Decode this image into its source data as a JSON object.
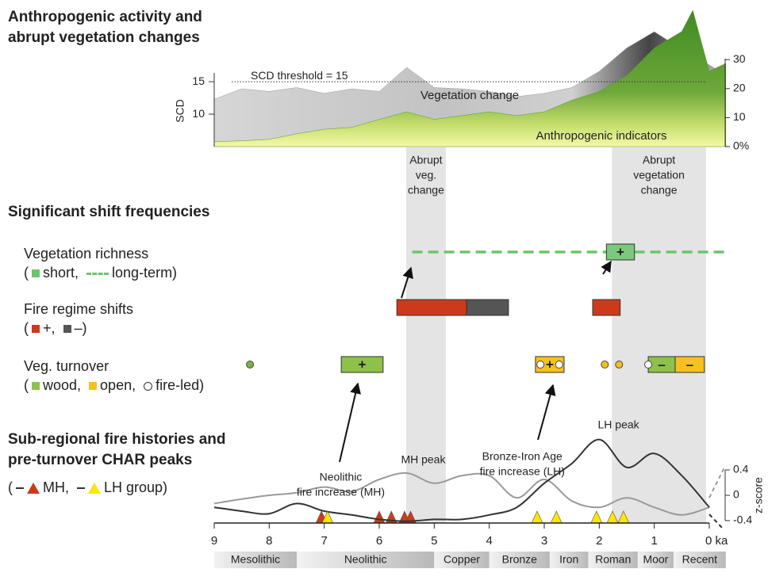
{
  "chart_data": [
    {
      "type": "area",
      "title": [
        "Anthropogenic activity and",
        "abrupt vegetation changes"
      ],
      "ylabel": "SCD",
      "xlim": [
        9,
        -0.3
      ],
      "ylim": [
        5,
        26
      ],
      "yticks": [
        10,
        15
      ],
      "y2lim": [
        0,
        47
      ],
      "y2ticks": [
        {
          "value": 0,
          "label": "0%"
        },
        10,
        20,
        30
      ],
      "threshold": {
        "value": 15,
        "label": "SCD threshold = 15"
      },
      "x": [
        9,
        8.5,
        8,
        7.5,
        7,
        6.5,
        6,
        5.5,
        5,
        4.5,
        4,
        3.5,
        3,
        2.5,
        2,
        1.5,
        1,
        0.5,
        0.3,
        0,
        -0.3
      ],
      "series": [
        {
          "name": "Vegetation change",
          "color": "#9a9a9a",
          "values": [
            12.3,
            13.9,
            13.5,
            14.1,
            13.2,
            13.9,
            13.5,
            17.2,
            14.1,
            13.9,
            13.5,
            12.7,
            13.2,
            14.1,
            16.6,
            20.2,
            22.7,
            20,
            19,
            17.6,
            16
          ]
        },
        {
          "name": "Anthropogenic indicators",
          "color": "#5a9a2e",
          "axis": "y2",
          "values": [
            1.7,
            2,
            2.5,
            4.4,
            6,
            6.6,
            9.4,
            12,
            9.4,
            10.7,
            12,
            10.7,
            12,
            16,
            19,
            24.5,
            34,
            39.7,
            47,
            26,
            28.7
          ]
        }
      ],
      "bands": [
        {
          "start": 5.51,
          "end": 4.79,
          "label": [
            "Abrupt",
            "veg.",
            "change"
          ]
        },
        {
          "start": 1.77,
          "end": 0.06,
          "label": [
            "Abrupt",
            "vegetation",
            "change"
          ]
        }
      ]
    },
    {
      "type": "timeline",
      "title": "Significant shift frequencies",
      "rows": [
        {
          "label": "Vegetation richness",
          "legend": {
            "open": "(",
            "items": [
              {
                "swatch": "square",
                "color": "#6cc56c",
                "label": "short,"
              },
              {
                "swatch": "dash",
                "color": "#6cc56c",
                "label": "long-term)"
              }
            ]
          },
          "events": [
            {
              "kind": "dash",
              "start": 5.4,
              "end": -0.3,
              "color": "#6cc56c"
            },
            {
              "kind": "box",
              "start": 1.87,
              "end": 1.36,
              "color": "#7cc87c",
              "label": "+"
            }
          ]
        },
        {
          "label": "Fire regime shifts",
          "legend": {
            "open": "(",
            "items": [
              {
                "swatch": "square",
                "color": "#cc3a1a",
                "label": "+,"
              },
              {
                "swatch": "square",
                "color": "#555555",
                "label": "–)"
              }
            ]
          },
          "events": [
            {
              "kind": "box",
              "start": 5.68,
              "end": 4.41,
              "color": "#cc3a1a"
            },
            {
              "kind": "box",
              "start": 4.41,
              "end": 3.65,
              "color": "#555555"
            },
            {
              "kind": "box",
              "start": 2.12,
              "end": 1.62,
              "color": "#cc3a1a"
            }
          ]
        },
        {
          "label": "Veg. turnover",
          "legend": {
            "open": "(",
            "items": [
              {
                "swatch": "square",
                "color": "#8dc14a",
                "label": "wood,"
              },
              {
                "swatch": "square",
                "color": "#f5c020",
                "label": "open,"
              },
              {
                "swatch": "ring",
                "color": "#ffffff",
                "label": "fire-led)"
              }
            ]
          },
          "events": [
            {
              "kind": "dot",
              "at": 8.35,
              "color": "#7ab540"
            },
            {
              "kind": "box",
              "start": 6.69,
              "end": 5.93,
              "color": "#8dc14a",
              "label": "+"
            },
            {
              "kind": "box",
              "start": 3.16,
              "end": 2.64,
              "color": "#f5c020",
              "label": "+"
            },
            {
              "kind": "ring",
              "at": 3.07,
              "color": "#ffffff"
            },
            {
              "kind": "ring",
              "at": 2.73,
              "color": "#ffffff"
            },
            {
              "kind": "dot",
              "at": 1.9,
              "color": "#f5c020"
            },
            {
              "kind": "dot",
              "at": 1.64,
              "color": "#f5c020"
            },
            {
              "kind": "box",
              "start": 1.11,
              "end": 0.62,
              "color": "#8dc14a",
              "label": "–"
            },
            {
              "kind": "box",
              "start": 0.62,
              "end": 0.09,
              "color": "#f5c020",
              "label": "–"
            },
            {
              "kind": "ring",
              "at": 1.11,
              "color": "#ffffff"
            }
          ]
        }
      ]
    },
    {
      "type": "line",
      "title": [
        "Sub-regional fire histories and",
        "pre-turnover CHAR peaks"
      ],
      "legend": {
        "open": "(",
        "items": [
          {
            "swatch": "tri",
            "color": "#cc3a1a",
            "label": "MH,"
          },
          {
            "swatch": "tri",
            "color": "#ffe600",
            "label": "LH group)"
          }
        ]
      },
      "y2label": "z-score",
      "ylim": [
        -0.5,
        1.0
      ],
      "yticks": [
        0.4,
        0,
        -0.4
      ],
      "xlim": [
        9,
        0
      ],
      "xticks": [
        9,
        8,
        7,
        6,
        5,
        4,
        3,
        2,
        1,
        {
          "value": 0,
          "label": "0 ka"
        }
      ],
      "x": [
        9,
        8.5,
        8,
        7.5,
        7,
        6.5,
        6,
        5.5,
        5,
        4.5,
        4,
        3.5,
        3,
        2.5,
        2,
        1.5,
        1,
        0.5,
        0
      ],
      "series": [
        {
          "name": "MH",
          "color": "#9a9a9a",
          "values": [
            -0.13,
            -0.06,
            0,
            0.04,
            0.13,
            0.06,
            0.25,
            0.35,
            0.19,
            0.31,
            0.31,
            -0.04,
            0.25,
            -0.09,
            -0.19,
            -0.04,
            -0.19,
            -0.31,
            -0.19
          ],
          "peaks": [
            7.05,
            6.0,
            5.78,
            5.54,
            5.43
          ],
          "peak_color": "#cc3a1a"
        },
        {
          "name": "LH group",
          "color": "#333333",
          "values": [
            -0.19,
            -0.25,
            -0.29,
            -0.13,
            -0.25,
            -0.31,
            -0.38,
            -0.41,
            -0.38,
            -0.38,
            -0.31,
            -0.19,
            0.19,
            0.5,
            0.88,
            0.44,
            0.66,
            0.31,
            -0.19
          ],
          "peaks": [
            6.94,
            3.13,
            2.78,
            2.05,
            1.76,
            1.56
          ],
          "peak_color": "#ffe600"
        }
      ],
      "annotations": [
        {
          "at": [
            5.2,
            0.55
          ],
          "lines": [
            "MH peak"
          ]
        },
        {
          "at": [
            1.65,
            1.1
          ],
          "lines": [
            "LH peak"
          ]
        },
        {
          "at": [
            6.7,
            0.28
          ],
          "lines": [
            "Neolithic",
            "fire increase (MH)"
          ]
        },
        {
          "at": [
            3.4,
            0.6
          ],
          "lines": [
            "Bronze-Iron Age",
            "fire increase (LH)"
          ]
        }
      ],
      "periods": [
        {
          "name": "Mesolithic",
          "start": 9,
          "end": 7.5
        },
        {
          "name": "Neolithic",
          "start": 7.5,
          "end": 5
        },
        {
          "name": "Copper",
          "start": 5,
          "end": 4
        },
        {
          "name": "Bronze",
          "start": 4,
          "end": 2.9
        },
        {
          "name": "Iron",
          "start": 2.9,
          "end": 2.2
        },
        {
          "name": "Roman",
          "start": 2.2,
          "end": 1.3
        },
        {
          "name": "Moor",
          "start": 1.3,
          "end": 0.65
        },
        {
          "name": "Recent",
          "start": 0.65,
          "end": -0.3
        }
      ]
    }
  ]
}
